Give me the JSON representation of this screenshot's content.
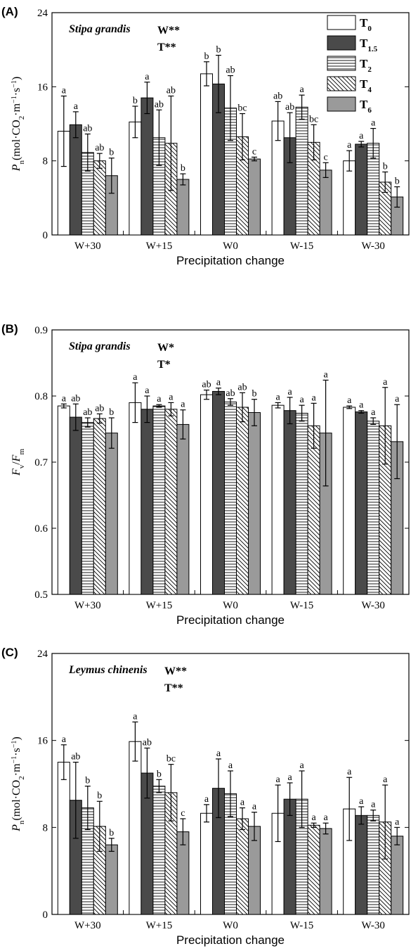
{
  "legend": {
    "items": [
      {
        "base": "T",
        "sub": "0",
        "fill": "white"
      },
      {
        "base": "T",
        "sub": "1.5",
        "fill": "dark"
      },
      {
        "base": "T",
        "sub": "2",
        "fill": "hlines"
      },
      {
        "base": "T",
        "sub": "4",
        "fill": "diag"
      },
      {
        "base": "T",
        "sub": "6",
        "fill": "gray"
      }
    ]
  },
  "colors": {
    "dark": "#4a4a4a",
    "gray": "#9a9a9a",
    "white": "#ffffff",
    "line": "#000000"
  },
  "chart_data": [
    {
      "type": "bar",
      "panel": "(A)",
      "species": "Stipa grandis",
      "sig": [
        "W**",
        "T**"
      ],
      "xlabel": "Precipitation change",
      "ylabel": {
        "base": "P",
        "sub": "n",
        "unit": "(mol·CO",
        "unit_sub": "2",
        "unit_rest": "·m",
        "sup1": "−1",
        "mid": "·s",
        "sup2": "−1",
        "close": ")"
      },
      "ylim": [
        0,
        24
      ],
      "yticks": [
        "0",
        "8",
        "16",
        "24"
      ],
      "categories": [
        "W+30",
        "W+15",
        "W0",
        "W-15",
        "W-30"
      ],
      "series": [
        {
          "name": "T0",
          "values": [
            11.2,
            12.2,
            17.4,
            12.3,
            8.0
          ],
          "errors": [
            3.8,
            1.7,
            1.3,
            2.1,
            1.1
          ],
          "letters": [
            "a",
            "b",
            "b",
            "ab",
            "a"
          ]
        },
        {
          "name": "T1.5",
          "values": [
            11.9,
            14.8,
            16.3,
            10.5,
            9.8
          ],
          "errors": [
            1.4,
            1.7,
            3.1,
            2.7,
            0.3
          ],
          "letters": [
            "a",
            "a",
            "b",
            "ab",
            "a"
          ]
        },
        {
          "name": "T2",
          "values": [
            8.9,
            10.5,
            13.7,
            13.8,
            9.9
          ],
          "errors": [
            2.0,
            3.0,
            3.5,
            1.3,
            1.6
          ],
          "letters": [
            "ab",
            "ab",
            "ab",
            "a",
            "a"
          ]
        },
        {
          "name": "T4",
          "values": [
            8.0,
            9.9,
            10.6,
            10.0,
            5.7
          ],
          "errors": [
            0.8,
            5.1,
            2.5,
            1.9,
            1.1
          ],
          "letters": [
            "ab",
            "ab",
            "bc",
            "bc",
            "b"
          ]
        },
        {
          "name": "T6",
          "values": [
            6.4,
            6.0,
            8.2,
            7.0,
            4.1
          ],
          "errors": [
            1.9,
            0.6,
            0.2,
            0.8,
            1.1
          ],
          "letters": [
            "b",
            "b",
            "c",
            "c",
            "b"
          ]
        }
      ]
    },
    {
      "type": "bar",
      "panel": "(B)",
      "species": "Stipa grandis",
      "sig": [
        "W*",
        "T*"
      ],
      "xlabel": "Precipitation change",
      "ylabel": {
        "base": "F",
        "sub": "v",
        "slash": "/",
        "base2": "F",
        "sub2": "m"
      },
      "ylim": [
        0.5,
        0.9
      ],
      "yticks": [
        "0.5",
        "0.6",
        "0.7",
        "0.8",
        "0.9"
      ],
      "categories": [
        "W+30",
        "W+15",
        "W0",
        "W-15",
        "W-30"
      ],
      "series": [
        {
          "name": "T0",
          "values": [
            0.785,
            0.79,
            0.802,
            0.786,
            0.783
          ],
          "errors": [
            0.003,
            0.03,
            0.007,
            0.004,
            0.002
          ],
          "letters": [
            "a",
            "a",
            "ab",
            "a",
            "a"
          ]
        },
        {
          "name": "T1.5",
          "values": [
            0.768,
            0.78,
            0.807,
            0.778,
            0.776
          ],
          "errors": [
            0.02,
            0.02,
            0.005,
            0.02,
            0.002
          ],
          "letters": [
            "ab",
            "a",
            "a",
            "a",
            "a"
          ]
        },
        {
          "name": "T2",
          "values": [
            0.76,
            0.785,
            0.791,
            0.774,
            0.762
          ],
          "errors": [
            0.007,
            0.002,
            0.005,
            0.012,
            0.005
          ],
          "letters": [
            "ab",
            "a",
            "ab",
            "a",
            "a"
          ]
        },
        {
          "name": "T4",
          "values": [
            0.766,
            0.78,
            0.783,
            0.755,
            0.755
          ],
          "errors": [
            0.007,
            0.01,
            0.022,
            0.034,
            0.058
          ],
          "letters": [
            "ab",
            "a",
            "ab",
            "a",
            "a"
          ]
        },
        {
          "name": "T6",
          "values": [
            0.744,
            0.757,
            0.775,
            0.744,
            0.731
          ],
          "errors": [
            0.023,
            0.022,
            0.02,
            0.08,
            0.056
          ],
          "letters": [
            "b",
            "a",
            "b",
            "a",
            "a"
          ]
        }
      ]
    },
    {
      "type": "bar",
      "panel": "(C)",
      "species": "Leymus chinenis",
      "sig": [
        "W**",
        "T**"
      ],
      "xlabel": "Precipitation change",
      "ylabel": {
        "base": "P",
        "sub": "n",
        "unit": "(mol·CO",
        "unit_sub": "2",
        "unit_rest": "·m",
        "sup1": "−1",
        "mid": "·s",
        "sup2": "−1",
        "close": ")"
      },
      "ylim": [
        0,
        24
      ],
      "yticks": [
        "0",
        "8",
        "16",
        "24"
      ],
      "categories": [
        "W+30",
        "W+15",
        "W0",
        "W-15",
        "W-30"
      ],
      "series": [
        {
          "name": "T0",
          "values": [
            14.0,
            15.9,
            9.3,
            9.3,
            9.7
          ],
          "errors": [
            1.6,
            1.8,
            0.8,
            2.6,
            2.9
          ],
          "letters": [
            "a",
            "a",
            "a",
            "a",
            "a"
          ]
        },
        {
          "name": "T1.5",
          "values": [
            10.5,
            13.0,
            11.6,
            10.6,
            9.1
          ],
          "errors": [
            3.5,
            2.3,
            2.7,
            1.5,
            0.8
          ],
          "letters": [
            "ab",
            "ab",
            "a",
            "a",
            "a"
          ]
        },
        {
          "name": "T2",
          "values": [
            9.8,
            11.8,
            11.1,
            10.6,
            9.1
          ],
          "errors": [
            2.0,
            0.6,
            2.1,
            2.6,
            0.5
          ],
          "letters": [
            "b",
            "b",
            "a",
            "a",
            "a"
          ]
        },
        {
          "name": "T4",
          "values": [
            8.1,
            11.2,
            8.8,
            8.2,
            8.5
          ],
          "errors": [
            2.3,
            2.6,
            1.0,
            0.2,
            3.4
          ],
          "letters": [
            "b",
            "bc",
            "a",
            "a",
            "a"
          ]
        },
        {
          "name": "T6",
          "values": [
            6.4,
            7.6,
            8.1,
            7.9,
            7.2
          ],
          "errors": [
            0.6,
            1.2,
            1.3,
            0.5,
            0.8
          ],
          "letters": [
            "b",
            "c",
            "a",
            "a",
            "a"
          ]
        }
      ]
    }
  ]
}
